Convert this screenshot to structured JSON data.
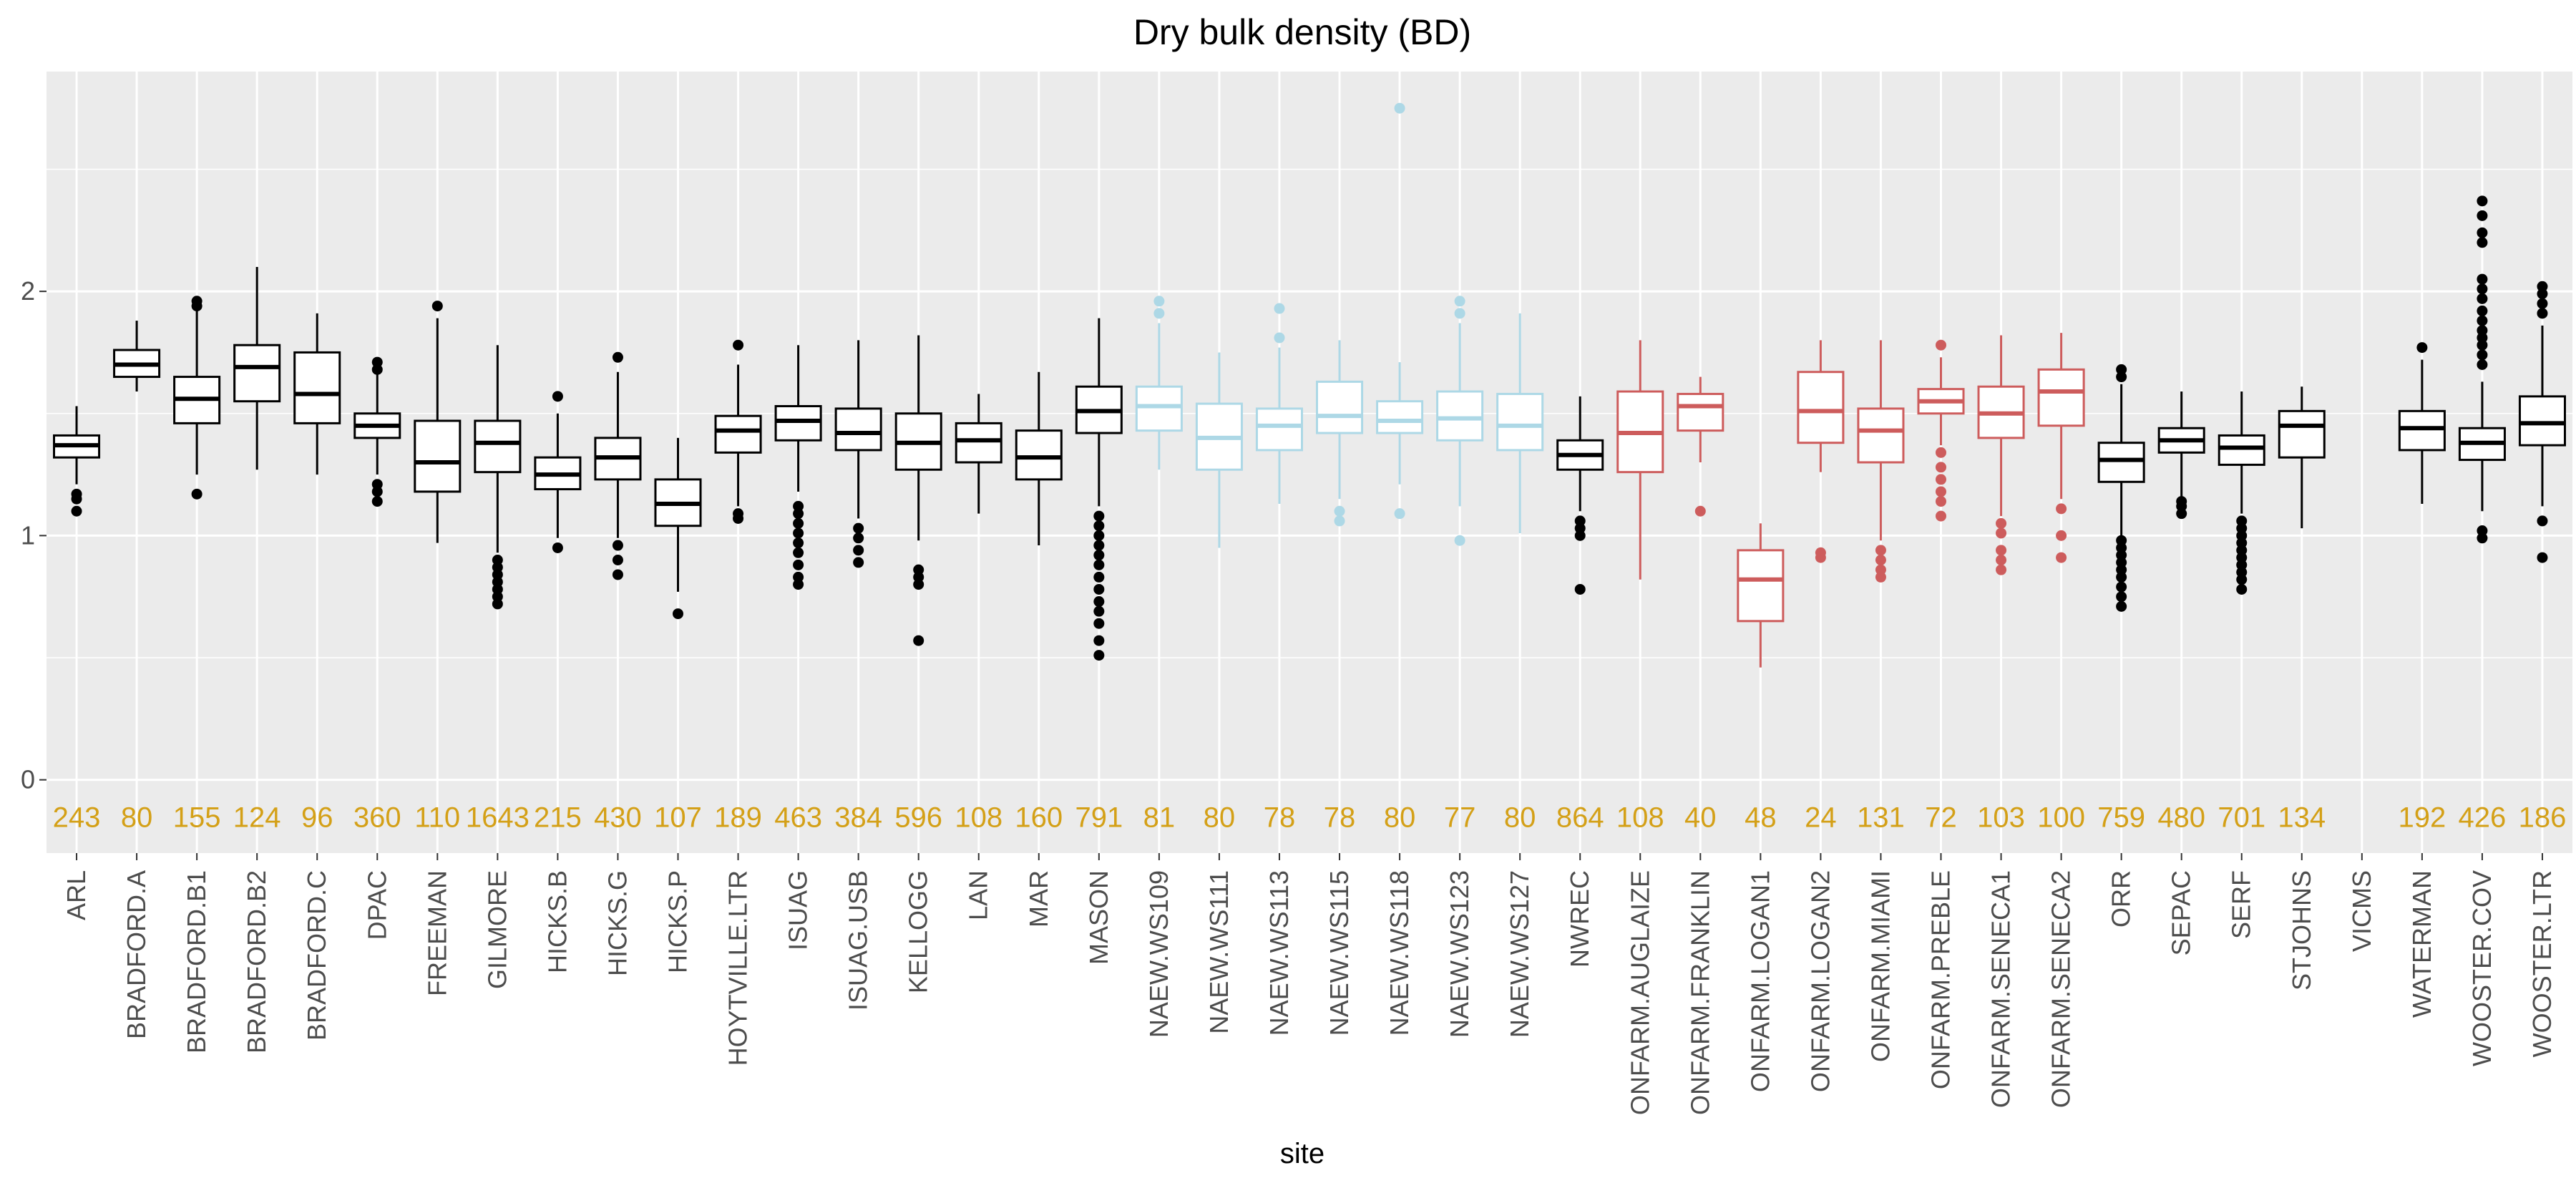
{
  "chart_data": {
    "type": "boxplot",
    "title": "Dry bulk density (BD)",
    "xlabel": "site",
    "ylabel": "",
    "ylim": [
      -0.3,
      2.9
    ],
    "yticks": [
      0,
      1,
      2
    ],
    "grid": true,
    "group_colors": {
      "default": "#000000",
      "NAEW": "#add8e6",
      "ONFARM": "#cd5c5c"
    },
    "count_color": "#d4a017",
    "panel_background": "#ebebeb",
    "sites": [
      {
        "name": "ARL",
        "n": "243",
        "group": "default",
        "q1": 1.32,
        "median": 1.37,
        "q3": 1.41,
        "whisker_low": 1.21,
        "whisker_high": 1.53,
        "outliers": [
          1.1,
          1.15,
          1.17
        ]
      },
      {
        "name": "BRADFORD.A",
        "n": "80",
        "group": "default",
        "q1": 1.65,
        "median": 1.7,
        "q3": 1.76,
        "whisker_low": 1.59,
        "whisker_high": 1.88,
        "outliers": []
      },
      {
        "name": "BRADFORD.B1",
        "n": "155",
        "group": "default",
        "q1": 1.46,
        "median": 1.56,
        "q3": 1.65,
        "whisker_low": 1.25,
        "whisker_high": 1.93,
        "outliers": [
          1.17,
          1.94,
          1.96
        ]
      },
      {
        "name": "BRADFORD.B2",
        "n": "124",
        "group": "default",
        "q1": 1.55,
        "median": 1.69,
        "q3": 1.78,
        "whisker_low": 1.27,
        "whisker_high": 2.1,
        "outliers": []
      },
      {
        "name": "BRADFORD.C",
        "n": "96",
        "group": "default",
        "q1": 1.46,
        "median": 1.58,
        "q3": 1.75,
        "whisker_low": 1.25,
        "whisker_high": 1.91,
        "outliers": []
      },
      {
        "name": "DPAC",
        "n": "360",
        "group": "default",
        "q1": 1.4,
        "median": 1.45,
        "q3": 1.5,
        "whisker_low": 1.25,
        "whisker_high": 1.66,
        "outliers": [
          1.14,
          1.18,
          1.21,
          1.68,
          1.71
        ]
      },
      {
        "name": "FREEMAN",
        "n": "110",
        "group": "default",
        "q1": 1.18,
        "median": 1.3,
        "q3": 1.47,
        "whisker_low": 0.97,
        "whisker_high": 1.89,
        "outliers": [
          1.94
        ]
      },
      {
        "name": "GILMORE",
        "n": "1643",
        "group": "default",
        "q1": 1.26,
        "median": 1.38,
        "q3": 1.47,
        "whisker_low": 0.93,
        "whisker_high": 1.78,
        "outliers": [
          0.72,
          0.75,
          0.78,
          0.81,
          0.84,
          0.87,
          0.9
        ]
      },
      {
        "name": "HICKS.B",
        "n": "215",
        "group": "default",
        "q1": 1.19,
        "median": 1.25,
        "q3": 1.32,
        "whisker_low": 0.99,
        "whisker_high": 1.5,
        "outliers": [
          0.95,
          1.57
        ]
      },
      {
        "name": "HICKS.G",
        "n": "430",
        "group": "default",
        "q1": 1.23,
        "median": 1.32,
        "q3": 1.4,
        "whisker_low": 0.99,
        "whisker_high": 1.67,
        "outliers": [
          0.84,
          0.9,
          0.96,
          1.73
        ]
      },
      {
        "name": "HICKS.P",
        "n": "107",
        "group": "default",
        "q1": 1.04,
        "median": 1.13,
        "q3": 1.23,
        "whisker_low": 0.77,
        "whisker_high": 1.4,
        "outliers": [
          0.68
        ]
      },
      {
        "name": "HOYTVILLE.LTR",
        "n": "189",
        "group": "default",
        "q1": 1.34,
        "median": 1.43,
        "q3": 1.49,
        "whisker_low": 1.12,
        "whisker_high": 1.7,
        "outliers": [
          1.07,
          1.09,
          1.78
        ]
      },
      {
        "name": "ISUAG",
        "n": "463",
        "group": "default",
        "q1": 1.39,
        "median": 1.47,
        "q3": 1.53,
        "whisker_low": 1.18,
        "whisker_high": 1.78,
        "outliers": [
          0.8,
          0.83,
          0.88,
          0.93,
          0.97,
          1.01,
          1.05,
          1.09,
          1.12
        ]
      },
      {
        "name": "ISUAG.USB",
        "n": "384",
        "group": "default",
        "q1": 1.35,
        "median": 1.42,
        "q3": 1.52,
        "whisker_low": 1.07,
        "whisker_high": 1.8,
        "outliers": [
          0.89,
          0.94,
          0.99,
          1.03
        ]
      },
      {
        "name": "KELLOGG",
        "n": "596",
        "group": "default",
        "q1": 1.27,
        "median": 1.38,
        "q3": 1.5,
        "whisker_low": 0.98,
        "whisker_high": 1.82,
        "outliers": [
          0.57,
          0.8,
          0.83,
          0.86
        ]
      },
      {
        "name": "LAN",
        "n": "108",
        "group": "default",
        "q1": 1.3,
        "median": 1.39,
        "q3": 1.46,
        "whisker_low": 1.09,
        "whisker_high": 1.58,
        "outliers": []
      },
      {
        "name": "MAR",
        "n": "160",
        "group": "default",
        "q1": 1.23,
        "median": 1.32,
        "q3": 1.43,
        "whisker_low": 0.96,
        "whisker_high": 1.67,
        "outliers": []
      },
      {
        "name": "MASON",
        "n": "791",
        "group": "default",
        "q1": 1.42,
        "median": 1.51,
        "q3": 1.61,
        "whisker_low": 1.12,
        "whisker_high": 1.89,
        "outliers": [
          0.51,
          0.57,
          0.64,
          0.69,
          0.73,
          0.78,
          0.83,
          0.88,
          0.92,
          0.96,
          1.0,
          1.04,
          1.08
        ]
      },
      {
        "name": "NAEW.WS109",
        "n": "81",
        "group": "NAEW",
        "q1": 1.43,
        "median": 1.53,
        "q3": 1.61,
        "whisker_low": 1.27,
        "whisker_high": 1.87,
        "outliers": [
          1.91,
          1.96
        ]
      },
      {
        "name": "NAEW.WS111",
        "n": "80",
        "group": "NAEW",
        "q1": 1.27,
        "median": 1.4,
        "q3": 1.54,
        "whisker_low": 0.95,
        "whisker_high": 1.75,
        "outliers": []
      },
      {
        "name": "NAEW.WS113",
        "n": "78",
        "group": "NAEW",
        "q1": 1.35,
        "median": 1.45,
        "q3": 1.52,
        "whisker_low": 1.13,
        "whisker_high": 1.77,
        "outliers": [
          1.81,
          1.93
        ]
      },
      {
        "name": "NAEW.WS115",
        "n": "78",
        "group": "NAEW",
        "q1": 1.42,
        "median": 1.49,
        "q3": 1.63,
        "whisker_low": 1.15,
        "whisker_high": 1.8,
        "outliers": [
          1.06,
          1.1
        ]
      },
      {
        "name": "NAEW.WS118",
        "n": "80",
        "group": "NAEW",
        "q1": 1.42,
        "median": 1.47,
        "q3": 1.55,
        "whisker_low": 1.21,
        "whisker_high": 1.71,
        "outliers": [
          1.09,
          2.75
        ]
      },
      {
        "name": "NAEW.WS123",
        "n": "77",
        "group": "NAEW",
        "q1": 1.39,
        "median": 1.48,
        "q3": 1.59,
        "whisker_low": 1.12,
        "whisker_high": 1.87,
        "outliers": [
          0.98,
          1.91,
          1.96
        ]
      },
      {
        "name": "NAEW.WS127",
        "n": "80",
        "group": "NAEW",
        "q1": 1.35,
        "median": 1.45,
        "q3": 1.58,
        "whisker_low": 1.01,
        "whisker_high": 1.91,
        "outliers": []
      },
      {
        "name": "NWREC",
        "n": "864",
        "group": "default",
        "q1": 1.27,
        "median": 1.33,
        "q3": 1.39,
        "whisker_low": 1.1,
        "whisker_high": 1.57,
        "outliers": [
          0.78,
          1.0,
          1.03,
          1.06
        ]
      },
      {
        "name": "ONFARM.AUGLAIZE",
        "n": "108",
        "group": "ONFARM",
        "q1": 1.26,
        "median": 1.42,
        "q3": 1.59,
        "whisker_low": 0.82,
        "whisker_high": 1.8,
        "outliers": []
      },
      {
        "name": "ONFARM.FRANKLIN",
        "n": "40",
        "group": "ONFARM",
        "q1": 1.43,
        "median": 1.53,
        "q3": 1.58,
        "whisker_low": 1.3,
        "whisker_high": 1.65,
        "outliers": [
          1.1
        ]
      },
      {
        "name": "ONFARM.LOGAN1",
        "n": "48",
        "group": "ONFARM",
        "q1": 0.65,
        "median": 0.82,
        "q3": 0.94,
        "whisker_low": 0.46,
        "whisker_high": 1.05,
        "outliers": []
      },
      {
        "name": "ONFARM.LOGAN2",
        "n": "24",
        "group": "ONFARM",
        "q1": 1.38,
        "median": 1.51,
        "q3": 1.67,
        "whisker_low": 1.26,
        "whisker_high": 1.8,
        "outliers": [
          0.91,
          0.93
        ]
      },
      {
        "name": "ONFARM.MIAMI",
        "n": "131",
        "group": "ONFARM",
        "q1": 1.3,
        "median": 1.43,
        "q3": 1.52,
        "whisker_low": 0.98,
        "whisker_high": 1.8,
        "outliers": [
          0.83,
          0.86,
          0.9,
          0.94
        ]
      },
      {
        "name": "ONFARM.PREBLE",
        "n": "72",
        "group": "ONFARM",
        "q1": 1.5,
        "median": 1.55,
        "q3": 1.6,
        "whisker_low": 1.37,
        "whisker_high": 1.73,
        "outliers": [
          1.08,
          1.14,
          1.18,
          1.23,
          1.28,
          1.34,
          1.78
        ]
      },
      {
        "name": "ONFARM.SENECA1",
        "n": "103",
        "group": "ONFARM",
        "q1": 1.4,
        "median": 1.5,
        "q3": 1.61,
        "whisker_low": 1.08,
        "whisker_high": 1.82,
        "outliers": [
          0.86,
          0.9,
          0.94,
          1.01,
          1.05
        ]
      },
      {
        "name": "ONFARM.SENECA2",
        "n": "100",
        "group": "ONFARM",
        "q1": 1.45,
        "median": 1.59,
        "q3": 1.68,
        "whisker_low": 1.15,
        "whisker_high": 1.83,
        "outliers": [
          0.91,
          1.0,
          1.11
        ]
      },
      {
        "name": "ORR",
        "n": "759",
        "group": "default",
        "q1": 1.22,
        "median": 1.31,
        "q3": 1.38,
        "whisker_low": 1.0,
        "whisker_high": 1.62,
        "outliers": [
          0.71,
          0.75,
          0.79,
          0.83,
          0.86,
          0.89,
          0.92,
          0.95,
          0.98,
          1.65,
          1.68
        ]
      },
      {
        "name": "SEPAC",
        "n": "480",
        "group": "default",
        "q1": 1.34,
        "median": 1.39,
        "q3": 1.44,
        "whisker_low": 1.15,
        "whisker_high": 1.59,
        "outliers": [
          1.09,
          1.12,
          1.14
        ]
      },
      {
        "name": "SERF",
        "n": "701",
        "group": "default",
        "q1": 1.29,
        "median": 1.36,
        "q3": 1.41,
        "whisker_low": 1.09,
        "whisker_high": 1.59,
        "outliers": [
          0.78,
          0.82,
          0.85,
          0.88,
          0.91,
          0.94,
          0.97,
          1.0,
          1.03,
          1.06
        ]
      },
      {
        "name": "STJOHNS",
        "n": "134",
        "group": "default",
        "q1": 1.32,
        "median": 1.45,
        "q3": 1.51,
        "whisker_low": 1.03,
        "whisker_high": 1.61,
        "outliers": []
      },
      {
        "name": "VICMS",
        "n": "",
        "group": "default",
        "q1": null,
        "median": null,
        "q3": null,
        "whisker_low": null,
        "whisker_high": null,
        "outliers": []
      },
      {
        "name": "WATERMAN",
        "n": "192",
        "group": "default",
        "q1": 1.35,
        "median": 1.44,
        "q3": 1.51,
        "whisker_low": 1.13,
        "whisker_high": 1.72,
        "outliers": [
          1.77
        ]
      },
      {
        "name": "WOOSTER.COV",
        "n": "426",
        "group": "default",
        "q1": 1.31,
        "median": 1.38,
        "q3": 1.44,
        "whisker_low": 1.1,
        "whisker_high": 1.63,
        "outliers": [
          0.99,
          1.02,
          1.7,
          1.74,
          1.78,
          1.81,
          1.84,
          1.88,
          1.92,
          1.97,
          2.01,
          2.05,
          2.2,
          2.24,
          2.31,
          2.37
        ]
      },
      {
        "name": "WOOSTER.LTR",
        "n": "186",
        "group": "default",
        "q1": 1.37,
        "median": 1.46,
        "q3": 1.57,
        "whisker_low": 1.12,
        "whisker_high": 1.86,
        "outliers": [
          0.91,
          1.06,
          1.91,
          1.95,
          1.99,
          2.02
        ]
      }
    ]
  }
}
